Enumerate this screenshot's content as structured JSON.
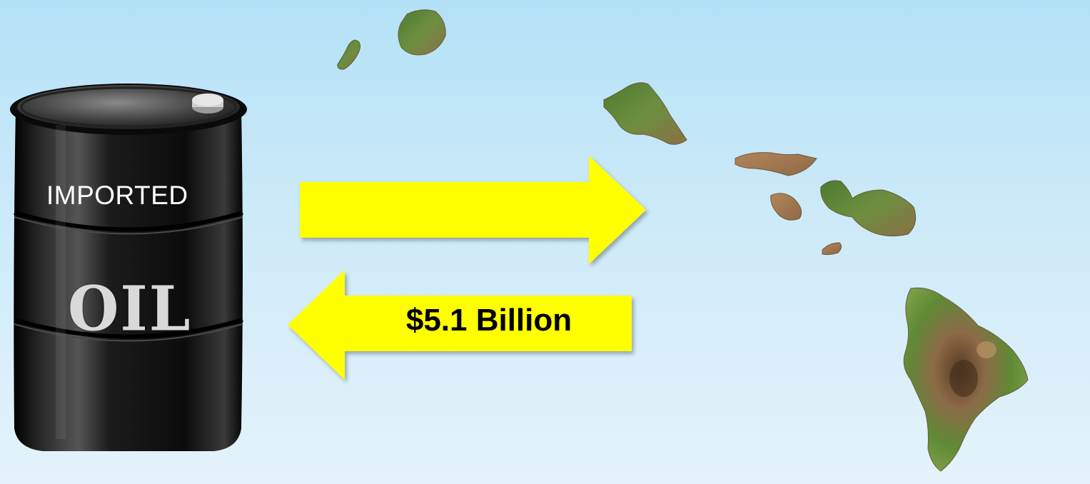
{
  "barrel": {
    "label": "IMPORTED",
    "emblem": "OIL"
  },
  "flows": {
    "to_islands": {
      "direction": "right",
      "label": ""
    },
    "to_barrel": {
      "direction": "left",
      "label": "$5.1 Billion"
    }
  },
  "islands": [
    "Niihau",
    "Kauai",
    "Oahu",
    "Molokai",
    "Lanai",
    "Maui",
    "Kahoolawe",
    "Hawaii"
  ],
  "colors": {
    "arrow_fill": "#ffff00",
    "barrel": "#141414",
    "sky_top": "#b3e1f7",
    "sky_bottom": "#e4f3fb"
  }
}
